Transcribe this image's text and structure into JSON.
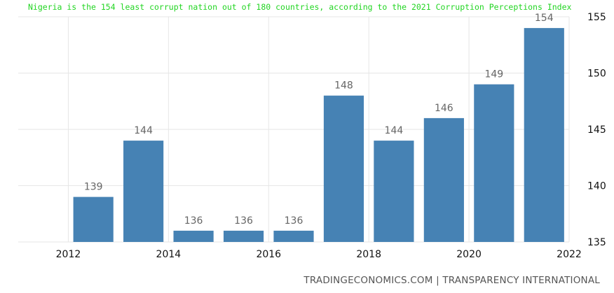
{
  "headline": "Nigeria is the 154 least corrupt nation out of 180 countries, according to the 2021 Corruption Perceptions Index",
  "source": "TRADINGECONOMICS.COM | TRANSPARENCY INTERNATIONAL",
  "colors": {
    "bar": "#4682b4",
    "headline": "#22d522"
  },
  "chart_data": {
    "type": "bar",
    "title": "Nigeria is the 154 least corrupt nation out of 180 countries, according to the 2021 Corruption Perceptions Index",
    "x": [
      2012,
      2013,
      2014,
      2015,
      2016,
      2017,
      2018,
      2019,
      2020,
      2021
    ],
    "values": [
      139,
      144,
      136,
      136,
      136,
      148,
      144,
      146,
      149,
      154
    ],
    "data_labels": [
      "139",
      "144",
      "136",
      "136",
      "136",
      "148",
      "144",
      "146",
      "149",
      "154"
    ],
    "xticks": [
      "2012",
      "2014",
      "2016",
      "2018",
      "2020",
      "2022"
    ],
    "xtick_values": [
      2012,
      2014,
      2016,
      2018,
      2020,
      2022
    ],
    "yticks": [
      "135",
      "140",
      "145",
      "150",
      "155"
    ],
    "ytick_values": [
      135,
      140,
      145,
      150,
      155
    ],
    "xlim": [
      2011,
      2022
    ],
    "ylim": [
      135,
      155
    ],
    "xlabel": "",
    "ylabel": "",
    "grid": true,
    "y_axis_side": "right"
  }
}
